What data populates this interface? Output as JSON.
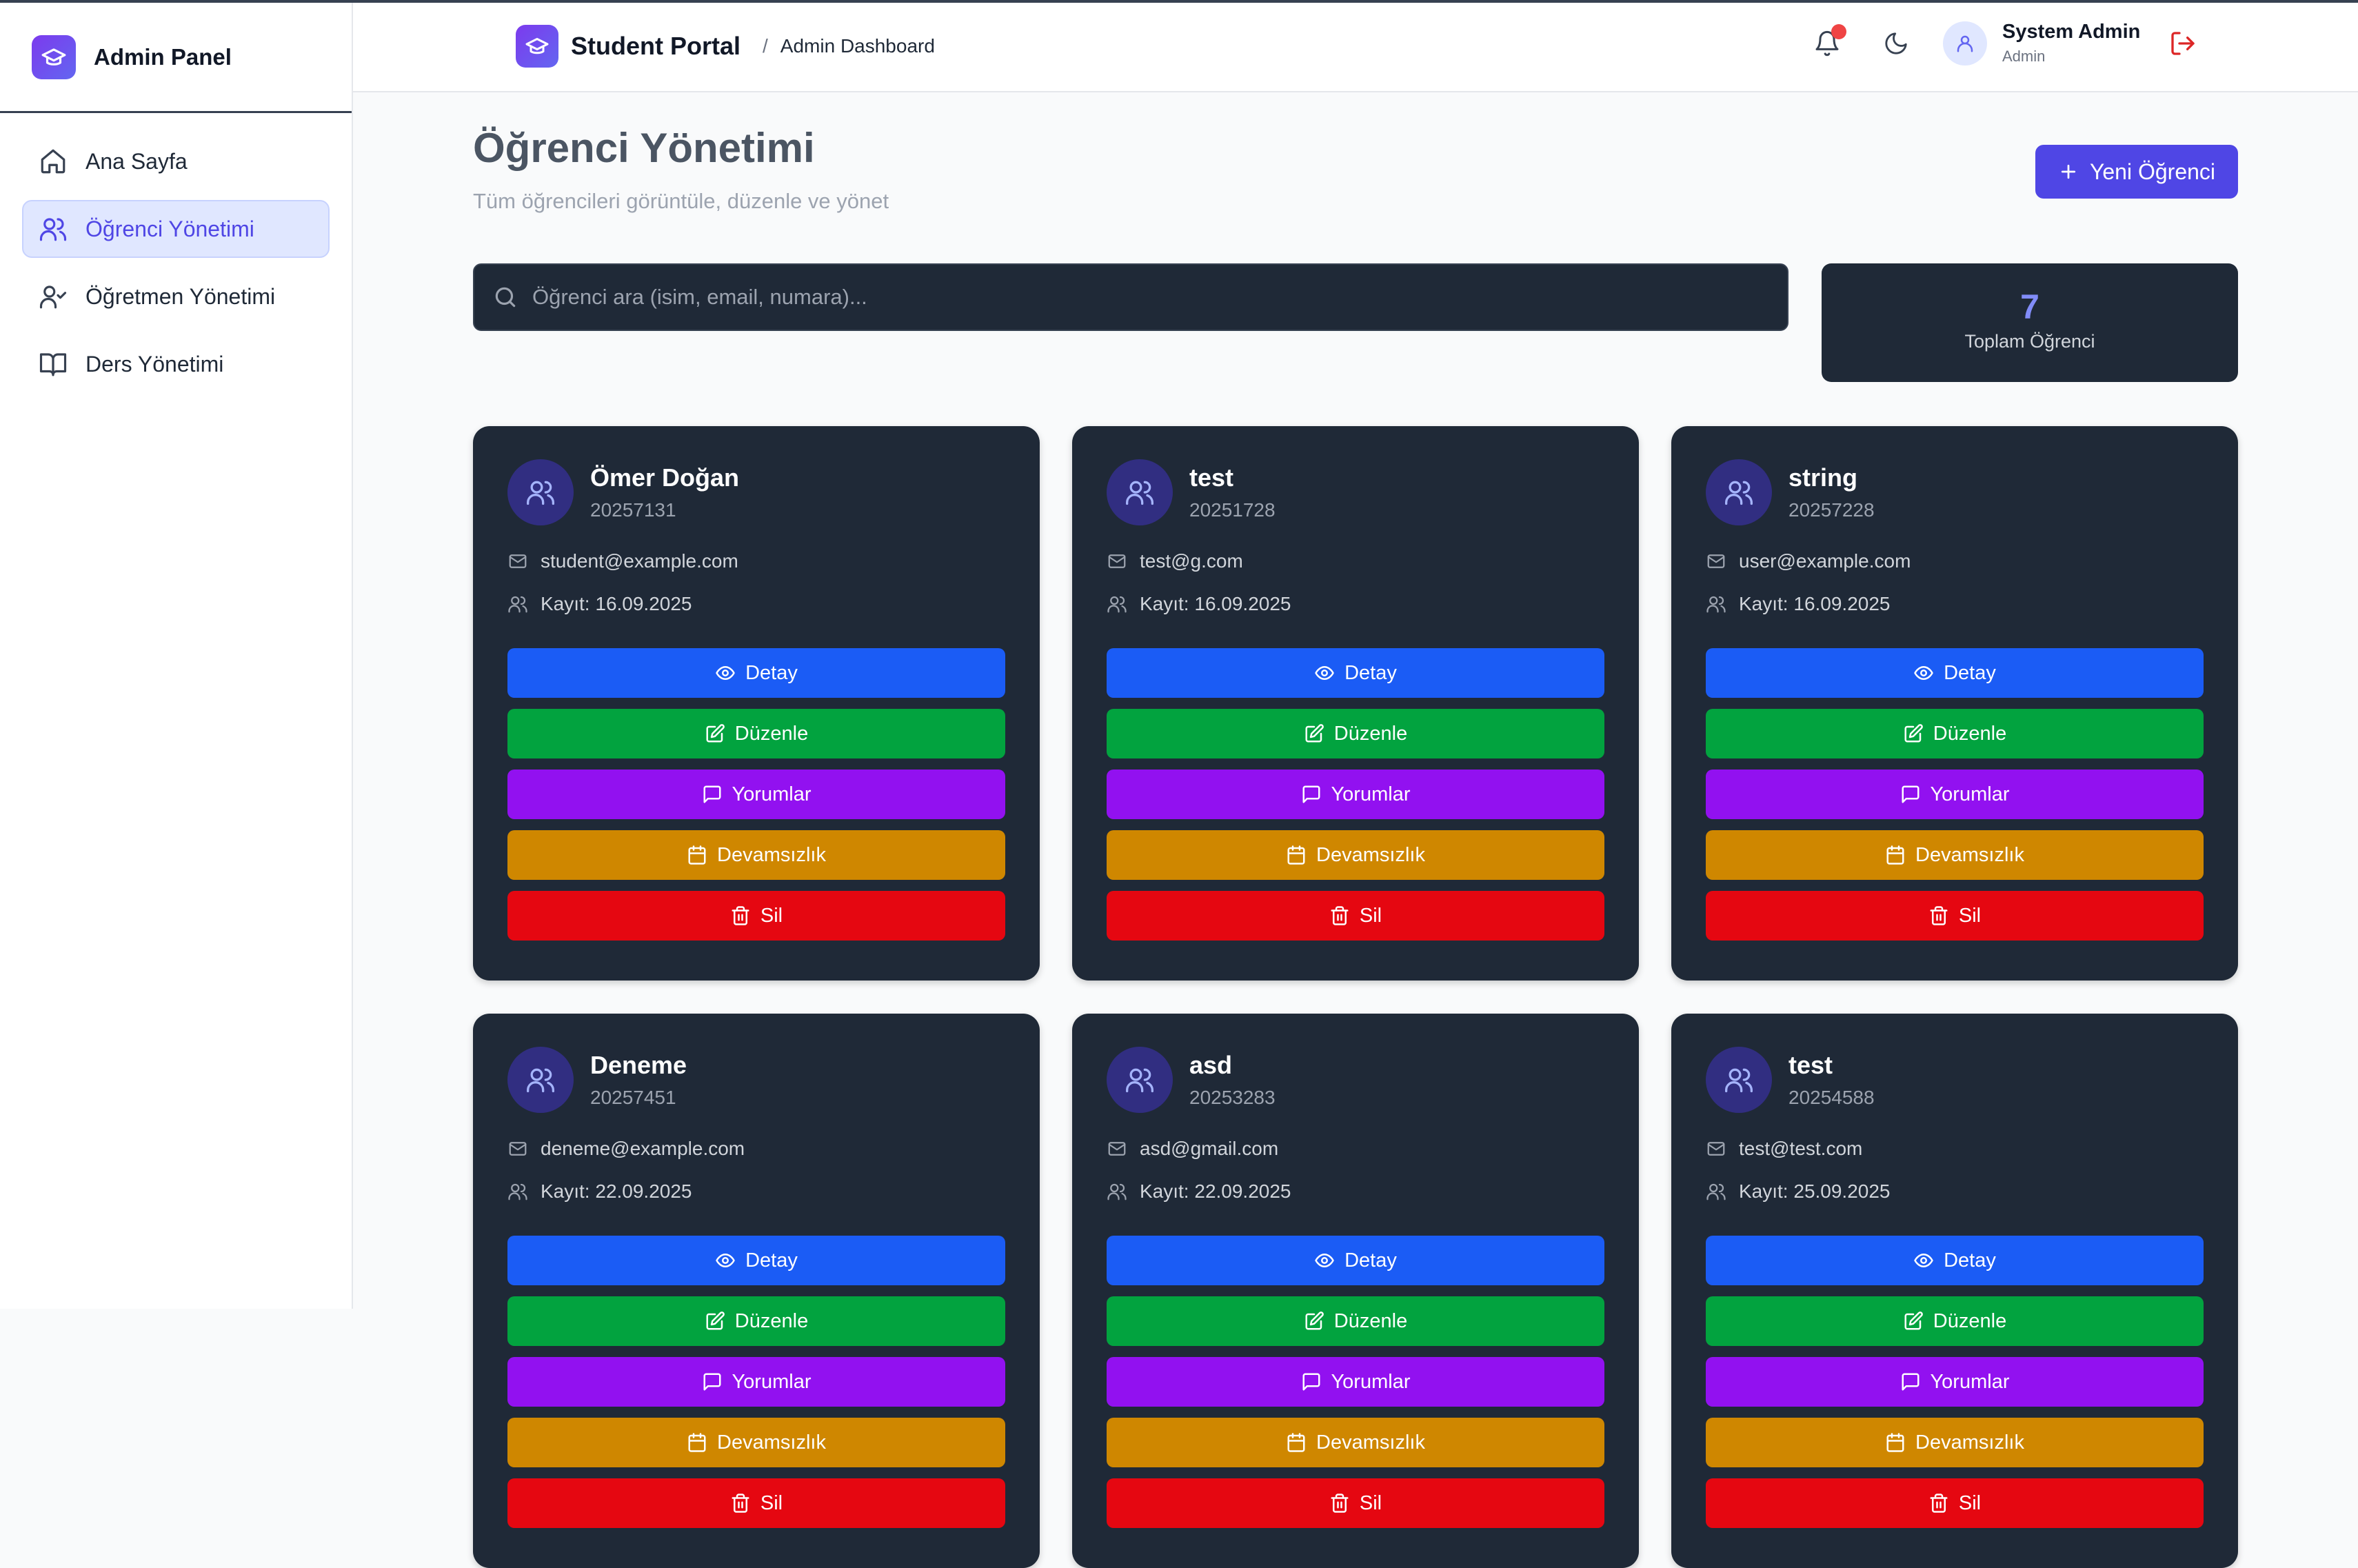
{
  "sidebar": {
    "brand": "Admin Panel",
    "items": [
      {
        "label": "Ana Sayfa",
        "icon": "home-icon"
      },
      {
        "label": "Öğrenci Yönetimi",
        "icon": "users-icon",
        "active": true
      },
      {
        "label": "Öğretmen Yönetimi",
        "icon": "user-check-icon"
      },
      {
        "label": "Ders Yönetimi",
        "icon": "book-open-icon"
      }
    ]
  },
  "header": {
    "title": "Student Portal",
    "separator": "/",
    "subtitle": "Admin Dashboard",
    "user_name": "System Admin",
    "user_role": "Admin"
  },
  "main": {
    "title": "Öğrenci Yönetimi",
    "subtitle": "Tüm öğrencileri görüntüle, düzenle ve yönet",
    "new_button": "Yeni Öğrenci",
    "search_placeholder": "Öğrenci ara (isim, email, numara)...",
    "stat_value": "7",
    "stat_label": "Toplam Öğrenci"
  },
  "buttons": {
    "detail": "Detay",
    "edit": "Düzenle",
    "comments": "Yorumlar",
    "absence": "Devamsızlık",
    "delete": "Sil"
  },
  "students": [
    {
      "name": "Ömer Doğan",
      "number": "20257131",
      "email": "student@example.com",
      "registered": "Kayıt: 16.09.2025"
    },
    {
      "name": "test",
      "number": "20251728",
      "email": "test@g.com",
      "registered": "Kayıt: 16.09.2025"
    },
    {
      "name": "string",
      "number": "20257228",
      "email": "user@example.com",
      "registered": "Kayıt: 16.09.2025"
    },
    {
      "name": "Deneme",
      "number": "20257451",
      "email": "deneme@example.com",
      "registered": "Kayıt: 22.09.2025"
    },
    {
      "name": "asd",
      "number": "20253283",
      "email": "asd@gmail.com",
      "registered": "Kayıt: 22.09.2025"
    },
    {
      "name": "test",
      "number": "20254588",
      "email": "test@test.com",
      "registered": "Kayıt: 25.09.2025"
    }
  ],
  "colors": {
    "accent": "#4f46e5",
    "card_bg": "#1f2937",
    "detail": "#1b5cf5",
    "edit": "#02a33f",
    "comments": "#9211f0",
    "absence": "#cf8700",
    "delete": "#e50711"
  }
}
